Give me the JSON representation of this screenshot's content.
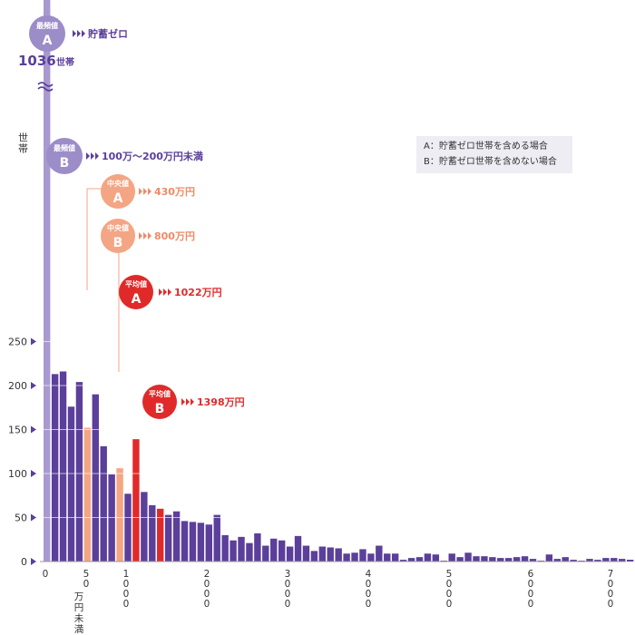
{
  "chart_data": {
    "type": "bar",
    "y_axis_label": "世帯",
    "y_ticks": [
      "0",
      "50",
      "100",
      "150",
      "200",
      "250"
    ],
    "ylim": [
      0,
      280
    ],
    "x_ticks": [
      "0",
      "50\n万円未満",
      "1000",
      "2000",
      "3000",
      "4000",
      "5000",
      "6000",
      "7000"
    ],
    "bin_width": "50万円",
    "first_bar_value": 1036,
    "first_bar_label": "1036世帯",
    "values": [
      1036,
      213,
      216,
      176,
      204,
      152,
      190,
      131,
      99,
      106,
      77,
      139,
      79,
      64,
      60,
      53,
      57,
      46,
      45,
      44,
      42,
      53,
      30,
      24,
      28,
      21,
      32,
      18,
      26,
      24,
      17,
      29,
      18,
      12,
      17,
      16,
      15,
      9,
      10,
      14,
      9,
      18,
      9,
      9,
      2,
      4,
      5,
      9,
      8,
      1,
      9,
      5,
      10,
      6,
      6,
      5,
      4,
      4,
      5,
      6,
      3,
      1,
      8,
      3,
      5,
      2,
      1,
      3,
      2,
      4,
      4,
      3,
      2,
      1
    ],
    "highlights": [
      {
        "index": 5,
        "color": "#f4a584",
        "label": "中央値A"
      },
      {
        "index": 9,
        "color": "#f4a584",
        "label": "中央値B"
      },
      {
        "index": 11,
        "color": "#e02a2a",
        "label": "平均値A"
      },
      {
        "index": 14,
        "color": "#e02a2a",
        "label": "平均値B"
      }
    ],
    "annotations": [
      {
        "badge_top": "最頻値",
        "badge_letter": "A",
        "text": "貯蓄ゼロ",
        "color": "#9c8cc8",
        "text_color": "#5b3f9a"
      },
      {
        "badge_top": "最頻値",
        "badge_letter": "B",
        "text": "100万〜200万円未満",
        "color": "#9c8cc8",
        "text_color": "#5b3f9a"
      },
      {
        "badge_top": "中央値",
        "badge_letter": "A",
        "text": "430万円",
        "color": "#f4a584",
        "text_color": "#ef8a67"
      },
      {
        "badge_top": "中央値",
        "badge_letter": "B",
        "text": "800万円",
        "color": "#f4a584",
        "text_color": "#ef8a67"
      },
      {
        "badge_top": "平均値",
        "badge_letter": "A",
        "text": "1022万円",
        "color": "#e02a2a",
        "text_color": "#e02a2a"
      },
      {
        "badge_top": "平均値",
        "badge_letter": "B",
        "text": "1398万円",
        "color": "#e02a2a",
        "text_color": "#e02a2a"
      }
    ],
    "legend": [
      "A：貯蓄ゼロ世帯を含める場合",
      "B：貯蓄ゼロ世帯を含めない場合"
    ],
    "colors": {
      "bar": "#5b3f9a",
      "first_bar": "#a89ad0",
      "median": "#f4a584",
      "mean": "#e02a2a",
      "axis_arrow": "#5b3f9a"
    },
    "grid": true
  }
}
